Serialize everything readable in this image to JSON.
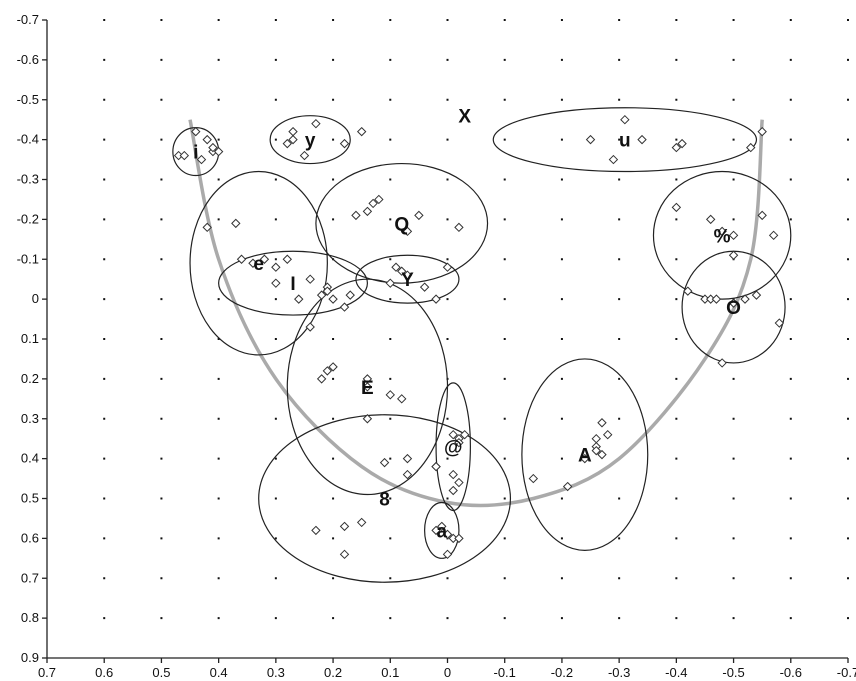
{
  "chart_data": {
    "type": "scatter",
    "title": "",
    "xlabel": "",
    "ylabel": "",
    "xlim": [
      0.7,
      -0.7
    ],
    "ylim": [
      -0.7,
      0.9
    ],
    "x_ticks": [
      "0.7",
      "0.6",
      "0.5",
      "0.4",
      "0.3",
      "0.2",
      "0.1",
      "0",
      "-0.1",
      "-0.2",
      "-0.3",
      "-0.4",
      "-0.5",
      "-0.6",
      "-0.7"
    ],
    "y_ticks": [
      "-0.7",
      "-0.6",
      "-0.5",
      "-0.4",
      "-0.3",
      "-0.2",
      "-0.1",
      "0",
      "0.1",
      "0.2",
      "0.3",
      "0.4",
      "0.5",
      "0.6",
      "0.7",
      "0.8",
      "0.9"
    ],
    "grid": "dotted points",
    "clusters": [
      {
        "label": "i",
        "center": [
          0.44,
          -0.37
        ],
        "radii": [
          0.04,
          0.06
        ],
        "points": [
          [
            0.44,
            -0.42
          ],
          [
            0.42,
            -0.4
          ],
          [
            0.47,
            -0.36
          ],
          [
            0.46,
            -0.36
          ],
          [
            0.43,
            -0.35
          ],
          [
            0.41,
            -0.37
          ],
          [
            0.4,
            -0.37
          ],
          [
            0.41,
            -0.38
          ]
        ]
      },
      {
        "label": "y",
        "center": [
          0.24,
          -0.4
        ],
        "radii": [
          0.07,
          0.06
        ],
        "points": [
          [
            0.27,
            -0.42
          ],
          [
            0.23,
            -0.44
          ],
          [
            0.28,
            -0.39
          ],
          [
            0.27,
            -0.4
          ],
          [
            0.25,
            -0.36
          ],
          [
            0.18,
            -0.39
          ],
          [
            0.15,
            -0.42
          ]
        ]
      },
      {
        "label": "X",
        "center": [
          -0.03,
          -0.46
        ],
        "radii": null,
        "points": []
      },
      {
        "label": "u",
        "center": [
          -0.31,
          -0.4
        ],
        "radii": [
          0.23,
          0.08
        ],
        "points": [
          [
            -0.25,
            -0.4
          ],
          [
            -0.31,
            -0.45
          ],
          [
            -0.29,
            -0.35
          ],
          [
            -0.34,
            -0.4
          ],
          [
            -0.4,
            -0.38
          ],
          [
            -0.41,
            -0.39
          ],
          [
            -0.53,
            -0.38
          ],
          [
            -0.55,
            -0.42
          ]
        ]
      },
      {
        "label": "Q",
        "center": [
          0.08,
          -0.19
        ],
        "radii": [
          0.15,
          0.15
        ],
        "points": [
          [
            0.14,
            -0.22
          ],
          [
            0.12,
            -0.25
          ],
          [
            0.16,
            -0.21
          ],
          [
            0.13,
            -0.24
          ],
          [
            0.05,
            -0.21
          ],
          [
            0.07,
            -0.17
          ],
          [
            -0.02,
            -0.18
          ]
        ]
      },
      {
        "label": "%",
        "center": [
          -0.48,
          -0.16
        ],
        "radii": [
          0.12,
          0.16
        ],
        "points": [
          [
            -0.4,
            -0.23
          ],
          [
            -0.46,
            -0.2
          ],
          [
            -0.48,
            -0.17
          ],
          [
            -0.5,
            -0.16
          ],
          [
            -0.55,
            -0.21
          ],
          [
            -0.57,
            -0.16
          ],
          [
            -0.5,
            -0.11
          ]
        ]
      },
      {
        "label": "e",
        "center": [
          0.33,
          -0.09
        ],
        "radii": [
          0.12,
          0.23
        ],
        "points": [
          [
            0.42,
            -0.18
          ],
          [
            0.37,
            -0.19
          ],
          [
            0.36,
            -0.1
          ],
          [
            0.32,
            -0.1
          ],
          [
            0.34,
            -0.09
          ],
          [
            0.3,
            -0.08
          ],
          [
            0.28,
            -0.1
          ]
        ]
      },
      {
        "label": "I",
        "center": [
          0.27,
          -0.04
        ],
        "radii": [
          0.13,
          0.08
        ],
        "points": [
          [
            0.3,
            -0.04
          ],
          [
            0.24,
            -0.05
          ],
          [
            0.21,
            -0.03
          ],
          [
            0.26,
            0.0
          ],
          [
            0.22,
            -0.01
          ],
          [
            0.2,
            0.0
          ],
          [
            0.21,
            -0.02
          ],
          [
            0.17,
            -0.01
          ],
          [
            0.18,
            0.02
          ],
          [
            0.24,
            0.07
          ]
        ]
      },
      {
        "label": "Y",
        "center": [
          0.07,
          -0.05
        ],
        "radii": [
          0.09,
          0.06
        ],
        "points": [
          [
            0.09,
            -0.08
          ],
          [
            0.08,
            -0.07
          ],
          [
            0.07,
            -0.06
          ],
          [
            0.1,
            -0.04
          ],
          [
            0.04,
            -0.03
          ],
          [
            0.02,
            0.0
          ],
          [
            0.0,
            -0.08
          ]
        ]
      },
      {
        "label": "O",
        "center": [
          -0.5,
          0.02
        ],
        "radii": [
          0.09,
          0.14
        ],
        "points": [
          [
            -0.42,
            -0.02
          ],
          [
            -0.45,
            0.0
          ],
          [
            -0.46,
            0.0
          ],
          [
            -0.47,
            0.0
          ],
          [
            -0.5,
            0.01
          ],
          [
            -0.52,
            0.0
          ],
          [
            -0.54,
            -0.01
          ],
          [
            -0.58,
            0.06
          ],
          [
            -0.48,
            0.16
          ]
        ]
      },
      {
        "label": "E",
        "center": [
          0.14,
          0.22
        ],
        "radii": [
          0.14,
          0.27
        ],
        "points": [
          [
            0.21,
            0.18
          ],
          [
            0.2,
            0.17
          ],
          [
            0.22,
            0.2
          ],
          [
            0.14,
            0.2
          ],
          [
            0.14,
            0.22
          ],
          [
            0.1,
            0.24
          ],
          [
            0.08,
            0.25
          ],
          [
            0.14,
            0.3
          ],
          [
            0.11,
            0.41
          ]
        ]
      },
      {
        "label": "@",
        "center": [
          -0.01,
          0.37
        ],
        "radii": [
          0.03,
          0.16
        ],
        "points": [
          [
            -0.01,
            0.34
          ],
          [
            -0.03,
            0.34
          ],
          [
            -0.02,
            0.35
          ],
          [
            -0.02,
            0.36
          ],
          [
            -0.01,
            0.44
          ],
          [
            -0.02,
            0.46
          ],
          [
            -0.01,
            0.48
          ],
          [
            0.02,
            0.42
          ]
        ]
      },
      {
        "label": "A",
        "center": [
          -0.24,
          0.39
        ],
        "radii": [
          0.11,
          0.24
        ],
        "points": [
          [
            -0.27,
            0.31
          ],
          [
            -0.26,
            0.35
          ],
          [
            -0.28,
            0.34
          ],
          [
            -0.26,
            0.37
          ],
          [
            -0.24,
            0.4
          ],
          [
            -0.26,
            0.38
          ],
          [
            -0.27,
            0.39
          ],
          [
            -0.15,
            0.45
          ],
          [
            -0.21,
            0.47
          ]
        ]
      },
      {
        "label": "8",
        "center": [
          0.11,
          0.5
        ],
        "radii": [
          0.22,
          0.21
        ],
        "points": [
          [
            0.07,
            0.4
          ],
          [
            0.07,
            0.44
          ],
          [
            0.02,
            0.42
          ],
          [
            0.23,
            0.58
          ],
          [
            0.18,
            0.57
          ],
          [
            0.15,
            0.56
          ],
          [
            0.18,
            0.64
          ]
        ]
      },
      {
        "label": "a",
        "center": [
          0.01,
          0.58
        ],
        "radii": [
          0.03,
          0.07
        ],
        "points": [
          [
            0.01,
            0.57
          ],
          [
            0.02,
            0.58
          ],
          [
            0.0,
            0.59
          ],
          [
            -0.01,
            0.6
          ],
          [
            -0.02,
            0.6
          ],
          [
            0.0,
            0.64
          ]
        ]
      }
    ],
    "curve": {
      "description_points": [
        [
          0.45,
          -0.45
        ],
        [
          0.4,
          -0.1
        ],
        [
          0.3,
          0.2
        ],
        [
          0.15,
          0.42
        ],
        [
          0.0,
          0.51
        ],
        [
          -0.15,
          0.5
        ],
        [
          -0.3,
          0.4
        ],
        [
          -0.45,
          0.15
        ],
        [
          -0.53,
          -0.1
        ],
        [
          -0.55,
          -0.45
        ]
      ]
    }
  }
}
